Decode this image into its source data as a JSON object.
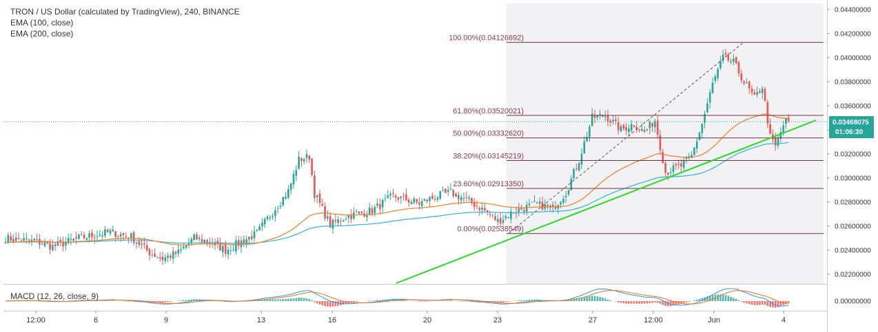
{
  "legend": {
    "title": "TRON / US Dollar (calculated by TradingView), 240, BINANCE",
    "ema100": "EMA (100, close)",
    "ema200": "EMA (200, close)"
  },
  "macd_label": "MACD (12, 26, close, 9)",
  "colors": {
    "up": "#26a69a",
    "down": "#ef5350",
    "ema100": "#f57c1f",
    "ema200": "#29b6d9",
    "trendline": "#22dd22",
    "fib": "#7b2f3f",
    "badge": "#26a69a",
    "macd_line": "#2196f3",
    "signal_line": "#ff6d00"
  },
  "price_badge": {
    "price": "0.03468075",
    "countdown": "01:06:30"
  },
  "chart_data": {
    "type": "candlestick",
    "title": "TRON / US Dollar (calculated by TradingView), 240, BINANCE",
    "ylim": [
      0.0212,
      0.0445
    ],
    "y_ticks": [
      "0.04400000",
      "0.04200000",
      "0.04000000",
      "0.03800000",
      "0.03600000",
      "0.03400000",
      "0.03200000",
      "0.03000000",
      "0.02800000",
      "0.02600000",
      "0.02400000",
      "0.02200000"
    ],
    "x_ticks": [
      "12:00",
      "6",
      "9",
      "13",
      "16",
      "20",
      "23",
      "27",
      "12:00",
      "Jun",
      "4"
    ],
    "macd_ticks": [
      "0.00000000"
    ],
    "fibonacci": [
      {
        "label": "100.00%(0.04126692)",
        "value": 0.04126692
      },
      {
        "label": "61.80%(0.03520021)",
        "value": 0.03520021
      },
      {
        "label": "50.00%(0.03332620)",
        "value": 0.0333262
      },
      {
        "label": "38.20%(0.03145219)",
        "value": 0.03145219
      },
      {
        "label": "23.60%(0.02913350)",
        "value": 0.0291335
      },
      {
        "label": "0.00%(0.02538549)",
        "value": 0.02538549
      }
    ],
    "waypoints": [
      [
        0,
        0.025
      ],
      [
        12,
        0.0247
      ],
      [
        18,
        0.0243
      ],
      [
        28,
        0.025
      ],
      [
        40,
        0.0255
      ],
      [
        48,
        0.0251
      ],
      [
        55,
        0.0238
      ],
      [
        60,
        0.0233
      ],
      [
        66,
        0.0238
      ],
      [
        72,
        0.025
      ],
      [
        78,
        0.0247
      ],
      [
        84,
        0.024
      ],
      [
        90,
        0.0247
      ],
      [
        96,
        0.0254
      ],
      [
        102,
        0.0272
      ],
      [
        108,
        0.0289
      ],
      [
        112,
        0.0315
      ],
      [
        116,
        0.0318
      ],
      [
        118,
        0.0287
      ],
      [
        124,
        0.0261
      ],
      [
        130,
        0.0268
      ],
      [
        140,
        0.0273
      ],
      [
        148,
        0.0285
      ],
      [
        158,
        0.0279
      ],
      [
        165,
        0.0285
      ],
      [
        170,
        0.0288
      ],
      [
        176,
        0.0282
      ],
      [
        183,
        0.0273
      ],
      [
        188,
        0.0264
      ],
      [
        194,
        0.0272
      ],
      [
        202,
        0.0278
      ],
      [
        209,
        0.0275
      ],
      [
        214,
        0.0288
      ],
      [
        219,
        0.0315
      ],
      [
        224,
        0.035
      ],
      [
        229,
        0.0352
      ],
      [
        235,
        0.034
      ],
      [
        240,
        0.0345
      ],
      [
        244,
        0.0338
      ],
      [
        248,
        0.0348
      ],
      [
        252,
        0.0305
      ],
      [
        258,
        0.031
      ],
      [
        262,
        0.0318
      ],
      [
        266,
        0.0345
      ],
      [
        270,
        0.0378
      ],
      [
        274,
        0.04
      ],
      [
        278,
        0.0396
      ],
      [
        282,
        0.038
      ],
      [
        286,
        0.0366
      ],
      [
        289,
        0.0376
      ],
      [
        292,
        0.0334
      ],
      [
        294,
        0.0326
      ],
      [
        297,
        0.0344
      ],
      [
        298,
        0.0347
      ]
    ]
  }
}
